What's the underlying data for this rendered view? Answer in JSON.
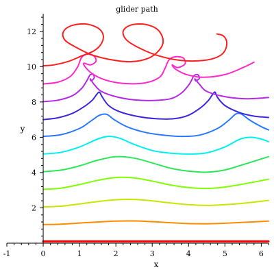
{
  "chart_data": {
    "type": "line",
    "title": "glider path",
    "xlabel": "x",
    "ylabel": "y",
    "xlim": [
      -1,
      6.2
    ],
    "ylim": [
      0,
      13
    ],
    "x_ticks": [
      "-1",
      "0",
      "1",
      "2",
      "3",
      "4",
      "5",
      "6"
    ],
    "y_ticks": [
      "2",
      "4",
      "6",
      "8",
      "10",
      "12"
    ],
    "grid": false,
    "legend": "none",
    "series": [
      {
        "color": "#ff0000",
        "points": [
          [
            0.0,
            0.1
          ],
          [
            6.2,
            0.1
          ]
        ]
      },
      {
        "color": "#ff8c00",
        "points": [
          [
            0.0,
            1.05
          ],
          [
            0.5,
            1.08
          ],
          [
            1.0,
            1.14
          ],
          [
            1.5,
            1.2
          ],
          [
            2.0,
            1.25
          ],
          [
            2.5,
            1.26
          ],
          [
            3.0,
            1.22
          ],
          [
            3.5,
            1.16
          ],
          [
            4.0,
            1.11
          ],
          [
            4.5,
            1.1
          ],
          [
            5.0,
            1.13
          ],
          [
            5.5,
            1.18
          ],
          [
            6.2,
            1.25
          ]
        ]
      },
      {
        "color": "#c8e600",
        "points": [
          [
            0.0,
            2.05
          ],
          [
            0.5,
            2.1
          ],
          [
            1.0,
            2.22
          ],
          [
            1.5,
            2.36
          ],
          [
            2.0,
            2.46
          ],
          [
            2.5,
            2.48
          ],
          [
            3.0,
            2.4
          ],
          [
            3.5,
            2.28
          ],
          [
            4.0,
            2.18
          ],
          [
            4.5,
            2.14
          ],
          [
            5.0,
            2.18
          ],
          [
            5.5,
            2.26
          ],
          [
            6.2,
            2.42
          ]
        ]
      },
      {
        "color": "#80ff00",
        "points": [
          [
            0.0,
            3.05
          ],
          [
            0.5,
            3.12
          ],
          [
            1.0,
            3.32
          ],
          [
            1.5,
            3.56
          ],
          [
            2.0,
            3.72
          ],
          [
            2.5,
            3.7
          ],
          [
            3.0,
            3.52
          ],
          [
            3.5,
            3.3
          ],
          [
            4.0,
            3.15
          ],
          [
            4.5,
            3.1
          ],
          [
            5.0,
            3.18
          ],
          [
            5.5,
            3.35
          ],
          [
            6.2,
            3.62
          ]
        ]
      },
      {
        "color": "#2ee65a",
        "points": [
          [
            0.0,
            4.05
          ],
          [
            0.5,
            4.14
          ],
          [
            1.0,
            4.38
          ],
          [
            1.5,
            4.7
          ],
          [
            2.0,
            4.9
          ],
          [
            2.5,
            4.82
          ],
          [
            3.0,
            4.55
          ],
          [
            3.5,
            4.25
          ],
          [
            4.0,
            4.08
          ],
          [
            4.5,
            4.02
          ],
          [
            5.0,
            4.15
          ],
          [
            5.5,
            4.45
          ],
          [
            6.2,
            4.9
          ]
        ]
      },
      {
        "color": "#00f0f0",
        "points": [
          [
            0.0,
            5.05
          ],
          [
            0.5,
            5.15
          ],
          [
            1.0,
            5.45
          ],
          [
            1.5,
            5.9
          ],
          [
            1.8,
            6.05
          ],
          [
            2.1,
            5.95
          ],
          [
            2.5,
            5.6
          ],
          [
            3.0,
            5.25
          ],
          [
            3.5,
            5.1
          ],
          [
            4.0,
            5.05
          ],
          [
            4.5,
            5.12
          ],
          [
            5.0,
            5.45
          ],
          [
            5.4,
            5.88
          ],
          [
            5.7,
            6.0
          ],
          [
            6.0,
            5.9
          ],
          [
            6.2,
            5.75
          ]
        ]
      },
      {
        "color": "#2878ff",
        "points": [
          [
            0.0,
            6.05
          ],
          [
            0.5,
            6.15
          ],
          [
            1.0,
            6.5
          ],
          [
            1.3,
            6.9
          ],
          [
            1.55,
            7.25
          ],
          [
            1.75,
            7.3
          ],
          [
            1.95,
            7.0
          ],
          [
            2.3,
            6.6
          ],
          [
            2.8,
            6.28
          ],
          [
            3.3,
            6.12
          ],
          [
            3.8,
            6.05
          ],
          [
            4.3,
            6.12
          ],
          [
            4.8,
            6.5
          ],
          [
            5.1,
            6.95
          ],
          [
            5.3,
            7.32
          ],
          [
            5.45,
            7.32
          ],
          [
            5.7,
            6.95
          ],
          [
            6.0,
            6.6
          ],
          [
            6.2,
            6.42
          ]
        ]
      },
      {
        "color": "#3c28dc",
        "points": [
          [
            0.0,
            7.0
          ],
          [
            0.4,
            7.1
          ],
          [
            0.8,
            7.35
          ],
          [
            1.1,
            7.7
          ],
          [
            1.35,
            8.1
          ],
          [
            1.48,
            8.45
          ],
          [
            1.55,
            8.55
          ],
          [
            1.62,
            8.3
          ],
          [
            1.8,
            7.8
          ],
          [
            2.1,
            7.45
          ],
          [
            2.6,
            7.18
          ],
          [
            3.1,
            7.05
          ],
          [
            3.6,
            7.05
          ],
          [
            4.0,
            7.25
          ],
          [
            4.35,
            7.7
          ],
          [
            4.55,
            8.1
          ],
          [
            4.67,
            8.45
          ],
          [
            4.73,
            8.55
          ],
          [
            4.8,
            8.25
          ],
          [
            5.0,
            7.8
          ],
          [
            5.4,
            7.4
          ],
          [
            5.8,
            7.2
          ],
          [
            6.2,
            7.12
          ]
        ]
      },
      {
        "color": "#b428e6",
        "points": [
          [
            0.0,
            8.02
          ],
          [
            0.4,
            8.1
          ],
          [
            0.8,
            8.35
          ],
          [
            1.05,
            8.75
          ],
          [
            1.2,
            9.2
          ],
          [
            1.25,
            9.4
          ],
          [
            1.3,
            9.55
          ],
          [
            1.38,
            9.55
          ],
          [
            1.4,
            9.35
          ],
          [
            1.32,
            9.2
          ],
          [
            1.3,
            9.3
          ],
          [
            1.4,
            9.0
          ],
          [
            1.6,
            8.6
          ],
          [
            2.0,
            8.3
          ],
          [
            2.5,
            8.12
          ],
          [
            3.0,
            8.08
          ],
          [
            3.5,
            8.18
          ],
          [
            3.8,
            8.5
          ],
          [
            4.0,
            8.95
          ],
          [
            4.1,
            9.3
          ],
          [
            4.15,
            9.5
          ],
          [
            4.25,
            9.55
          ],
          [
            4.3,
            9.35
          ],
          [
            4.2,
            9.2
          ],
          [
            4.18,
            9.3
          ],
          [
            4.3,
            9.0
          ],
          [
            4.5,
            8.6
          ],
          [
            5.0,
            8.3
          ],
          [
            5.6,
            8.18
          ],
          [
            6.2,
            8.25
          ]
        ]
      },
      {
        "color": "#ff28c8",
        "points": [
          [
            0.0,
            9.02
          ],
          [
            0.4,
            9.12
          ],
          [
            0.75,
            9.45
          ],
          [
            0.95,
            10.0
          ],
          [
            1.05,
            10.5
          ],
          [
            1.2,
            10.7
          ],
          [
            1.4,
            10.6
          ],
          [
            1.45,
            10.3
          ],
          [
            1.3,
            10.1
          ],
          [
            1.12,
            10.2
          ],
          [
            1.15,
            10.0
          ],
          [
            1.35,
            9.6
          ],
          [
            1.7,
            9.25
          ],
          [
            2.2,
            9.05
          ],
          [
            2.8,
            9.08
          ],
          [
            3.2,
            9.4
          ],
          [
            3.35,
            9.9
          ],
          [
            3.45,
            10.35
          ],
          [
            3.6,
            10.55
          ],
          [
            3.85,
            10.5
          ],
          [
            3.9,
            10.15
          ],
          [
            3.7,
            9.95
          ],
          [
            3.55,
            10.1
          ],
          [
            3.65,
            9.85
          ],
          [
            3.95,
            9.55
          ],
          [
            4.4,
            9.4
          ],
          [
            5.0,
            9.55
          ],
          [
            5.5,
            9.95
          ],
          [
            5.8,
            10.25
          ]
        ]
      },
      {
        "color": "#ff1e1e",
        "points": [
          [
            0.0,
            10.05
          ],
          [
            0.3,
            10.1
          ],
          [
            0.7,
            10.3
          ],
          [
            1.05,
            10.6
          ],
          [
            1.4,
            10.9
          ],
          [
            1.6,
            11.3
          ],
          [
            1.65,
            11.8
          ],
          [
            1.5,
            12.2
          ],
          [
            1.15,
            12.42
          ],
          [
            0.75,
            12.3
          ],
          [
            0.55,
            11.95
          ],
          [
            0.6,
            11.5
          ],
          [
            0.9,
            11.1
          ],
          [
            1.3,
            10.7
          ],
          [
            1.8,
            10.42
          ],
          [
            2.4,
            10.28
          ],
          [
            2.9,
            10.48
          ],
          [
            3.2,
            10.95
          ],
          [
            3.3,
            11.5
          ],
          [
            3.15,
            12.1
          ],
          [
            2.8,
            12.4
          ],
          [
            2.4,
            12.35
          ],
          [
            2.2,
            12.0
          ],
          [
            2.3,
            11.5
          ],
          [
            2.7,
            11.0
          ],
          [
            3.2,
            10.6
          ],
          [
            3.8,
            10.35
          ],
          [
            4.4,
            10.35
          ],
          [
            4.8,
            10.55
          ],
          [
            5.0,
            10.9
          ],
          [
            5.05,
            11.4
          ],
          [
            4.95,
            11.75
          ],
          [
            4.78,
            11.85
          ]
        ]
      }
    ]
  }
}
